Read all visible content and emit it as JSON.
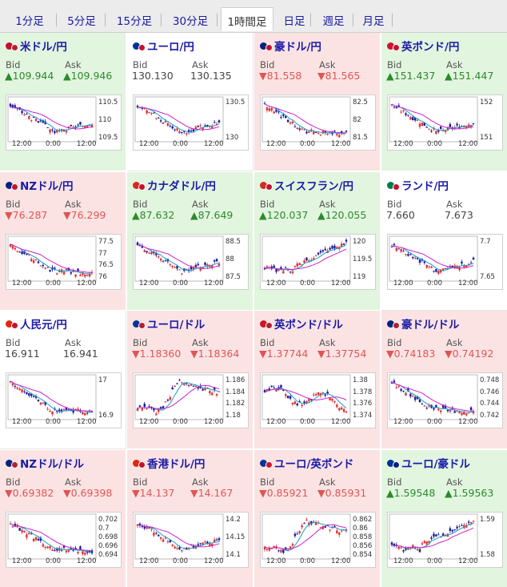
{
  "tabs": [
    {
      "label": "1分足",
      "active": false
    },
    {
      "label": "5分足",
      "active": false
    },
    {
      "label": "15分足",
      "active": false
    },
    {
      "label": "30分足",
      "active": false
    },
    {
      "label": "1時間足",
      "active": true
    },
    {
      "label": "日足",
      "active": false
    },
    {
      "label": "週足",
      "active": false
    },
    {
      "label": "月足",
      "active": false
    }
  ],
  "colors": {
    "link": "#1a1aa6",
    "up_bg": "#e2f5df",
    "down_bg": "#fbe3e3",
    "up_text": "#2c8a2c",
    "down_text": "#e05555",
    "candle_up": "#e03030",
    "candle_down": "#1a1a9a",
    "ma_short": "#1aa0c0",
    "ma_long": "#cc22cc"
  },
  "bid_label": "Bid",
  "ask_label": "Ask",
  "x_ticks": [
    "12:00",
    "0:00",
    "12:00"
  ],
  "pairs": [
    {
      "name": "米ドル/円",
      "flags": [
        "#c8102e",
        "#b22234"
      ],
      "dir": "up",
      "bid_arrow": "▲",
      "bid": "109.944",
      "ask_arrow": "▲",
      "ask": "109.946",
      "y_ticks": [
        "110.5",
        "110",
        "109.5"
      ],
      "shape": "down_recover"
    },
    {
      "name": "ユーロ/円",
      "flags": [
        "#003399",
        "#c8102e"
      ],
      "dir": "flat",
      "bid_arrow": "",
      "bid": "130.130",
      "ask_arrow": "",
      "ask": "130.135",
      "y_ticks": [
        "130.5",
        "130"
      ],
      "shape": "down_recover"
    },
    {
      "name": "豪ドル/円",
      "flags": [
        "#00247d",
        "#c8102e"
      ],
      "dir": "down",
      "bid_arrow": "▼",
      "bid": "81.558",
      "ask_arrow": "▼",
      "ask": "81.565",
      "y_ticks": [
        "82.5",
        "82",
        "81.5"
      ],
      "shape": "down_flat"
    },
    {
      "name": "英ポンド/円",
      "flags": [
        "#cf142b",
        "#c8102e"
      ],
      "dir": "up",
      "bid_arrow": "▲",
      "bid": "151.437",
      "ask_arrow": "▲",
      "ask": "151.447",
      "y_ticks": [
        "152",
        "151"
      ],
      "shape": "down_recover"
    },
    {
      "name": "NZドル/円",
      "flags": [
        "#00247d",
        "#c8102e"
      ],
      "dir": "down",
      "bid_arrow": "▼",
      "bid": "76.287",
      "ask_arrow": "▼",
      "ask": "76.299",
      "y_ticks": [
        "77.5",
        "77",
        "76.5",
        "76"
      ],
      "shape": "down_flat"
    },
    {
      "name": "カナダドル/円",
      "flags": [
        "#d52b1e",
        "#c8102e"
      ],
      "dir": "up",
      "bid_arrow": "▲",
      "bid": "87.632",
      "ask_arrow": "▲",
      "ask": "87.649",
      "y_ticks": [
        "88.5",
        "88",
        "87.5"
      ],
      "shape": "down_recover"
    },
    {
      "name": "スイスフラン/円",
      "flags": [
        "#d52b1e",
        "#c8102e"
      ],
      "dir": "up",
      "bid_arrow": "▲",
      "bid": "120.037",
      "ask_arrow": "▲",
      "ask": "120.055",
      "y_ticks": [
        "120",
        "119.5",
        "119"
      ],
      "shape": "up_steady"
    },
    {
      "name": "ランド/円",
      "flags": [
        "#007a4d",
        "#c8102e"
      ],
      "dir": "flat",
      "bid_arrow": "",
      "bid": "7.660",
      "ask_arrow": "",
      "ask": "7.673",
      "y_ticks": [
        "7.7",
        "7.65"
      ],
      "shape": "down_recover"
    },
    {
      "name": "人民元/円",
      "flags": [
        "#de2910",
        "#c8102e"
      ],
      "dir": "flat",
      "bid_arrow": "",
      "bid": "16.911",
      "ask_arrow": "",
      "ask": "16.941",
      "y_ticks": [
        "17",
        "16.9"
      ],
      "shape": "down_flat"
    },
    {
      "name": "ユーロ/ドル",
      "flags": [
        "#003399",
        "#b22234"
      ],
      "dir": "down",
      "bid_arrow": "▼",
      "bid": "1.18360",
      "ask_arrow": "▼",
      "ask": "1.18364",
      "y_ticks": [
        "1.186",
        "1.184",
        "1.182",
        "1.18"
      ],
      "shape": "up_hump"
    },
    {
      "name": "英ポンド/ドル",
      "flags": [
        "#cf142b",
        "#b22234"
      ],
      "dir": "down",
      "bid_arrow": "▼",
      "bid": "1.37744",
      "ask_arrow": "▼",
      "ask": "1.37754",
      "y_ticks": [
        "1.38",
        "1.378",
        "1.376",
        "1.374"
      ],
      "shape": "wavy"
    },
    {
      "name": "豪ドル/ドル",
      "flags": [
        "#00247d",
        "#b22234"
      ],
      "dir": "down",
      "bid_arrow": "▼",
      "bid": "0.74183",
      "ask_arrow": "▼",
      "ask": "0.74192",
      "y_ticks": [
        "0.748",
        "0.746",
        "0.744",
        "0.742"
      ],
      "shape": "down_flat"
    },
    {
      "name": "NZドル/ドル",
      "flags": [
        "#00247d",
        "#b22234"
      ],
      "dir": "down",
      "bid_arrow": "▼",
      "bid": "0.69382",
      "ask_arrow": "▼",
      "ask": "0.69398",
      "y_ticks": [
        "0.702",
        "0.7",
        "0.698",
        "0.696",
        "0.694"
      ],
      "shape": "down_flat"
    },
    {
      "name": "香港ドル/円",
      "flags": [
        "#de2910",
        "#c8102e"
      ],
      "dir": "down",
      "bid_arrow": "▼",
      "bid": "14.137",
      "ask_arrow": "▼",
      "ask": "14.167",
      "y_ticks": [
        "14.2",
        "14.15",
        "14.1"
      ],
      "shape": "down_recover"
    },
    {
      "name": "ユーロ/英ポンド",
      "flags": [
        "#003399",
        "#cf142b"
      ],
      "dir": "down",
      "bid_arrow": "▼",
      "bid": "0.85921",
      "ask_arrow": "▼",
      "ask": "0.85931",
      "y_ticks": [
        "0.862",
        "0.86",
        "0.858",
        "0.856",
        "0.854"
      ],
      "shape": "up_hump"
    },
    {
      "name": "ユーロ/豪ドル",
      "flags": [
        "#003399",
        "#00247d"
      ],
      "dir": "up",
      "bid_arrow": "▲",
      "bid": "1.59548",
      "ask_arrow": "▲",
      "ask": "1.59563",
      "y_ticks": [
        "1.59",
        "1.58"
      ],
      "shape": "up_steady"
    }
  ]
}
